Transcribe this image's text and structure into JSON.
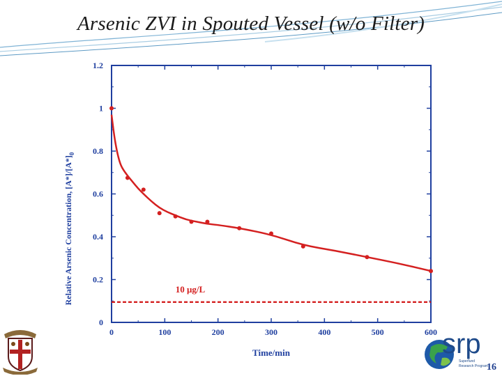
{
  "slide": {
    "title": "Arsenic ZVI in Spouted Vessel (w/o Filter)",
    "page_number": "16"
  },
  "logos": {
    "left": "Brown University seal",
    "right": {
      "letters": "srp",
      "caption_line1": "Superfund",
      "caption_line2": "Research Program"
    }
  },
  "colors": {
    "axis": "#1f3f9f",
    "series": "#d42020",
    "threshold": "#d42020",
    "title": "#1a1a1a"
  },
  "chart_data": {
    "type": "scatter",
    "title": "",
    "xlabel": "Time/min",
    "ylabel": "Relative Arsenic Concentration, [A*]/[A*]",
    "ylabel_subscript": "0",
    "xlim": [
      0,
      600
    ],
    "ylim": [
      0,
      1.2
    ],
    "xticks": [
      "0",
      "100",
      "200",
      "300",
      "400",
      "500",
      "600"
    ],
    "yticks": [
      "0",
      "0.2",
      "0.4",
      "0.6",
      "0.8",
      "1",
      "1.2"
    ],
    "xtick_values": [
      0,
      100,
      200,
      300,
      400,
      500,
      600
    ],
    "ytick_values": [
      0,
      0.2,
      0.4,
      0.6,
      0.8,
      1.0,
      1.2
    ],
    "grid": false,
    "series": [
      {
        "x": [
          0,
          30,
          60,
          90,
          120,
          150,
          180,
          240,
          300,
          360,
          480,
          600
        ],
        "y": [
          1.0,
          0.675,
          0.62,
          0.51,
          0.495,
          0.47,
          0.47,
          0.44,
          0.415,
          0.355,
          0.305,
          0.24
        ],
        "fit": {
          "x": [
            0,
            5,
            10,
            15,
            20,
            30,
            40,
            50,
            60,
            75,
            90,
            105,
            120,
            140,
            160,
            180,
            200,
            240,
            300,
            360,
            420,
            480,
            540,
            600
          ],
          "y": [
            0.97,
            0.87,
            0.8,
            0.75,
            0.72,
            0.685,
            0.655,
            0.625,
            0.6,
            0.565,
            0.535,
            0.515,
            0.5,
            0.48,
            0.47,
            0.46,
            0.455,
            0.44,
            0.41,
            0.36,
            0.335,
            0.305,
            0.275,
            0.24
          ]
        }
      }
    ],
    "threshold": {
      "y": 0.095,
      "label": "10 μg/L"
    }
  }
}
